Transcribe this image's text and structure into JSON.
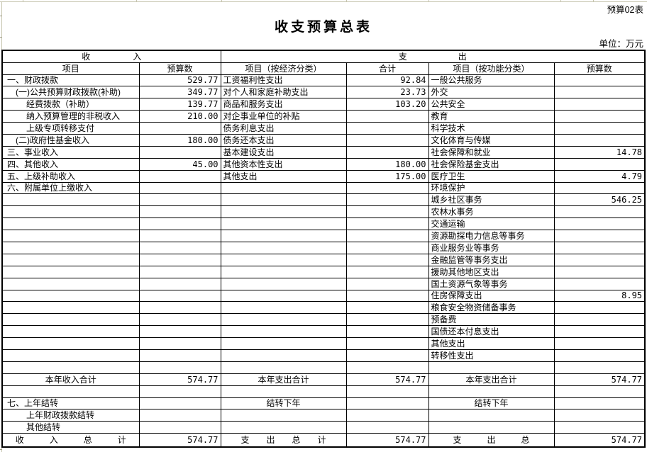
{
  "colors": {
    "background": "#ffffff",
    "table_border": "#000000",
    "sheet_gridline": "#c6c4ae",
    "text": "#000000"
  },
  "meta": {
    "table_code": "预算02表",
    "title": "收支预算总表",
    "unit_label": "单位：万元"
  },
  "header": {
    "income_group": "收　　　　　入",
    "expense_group": "支　　　　　　出",
    "cols": [
      "项目",
      "预算数",
      "项目（按经济分类）",
      "合计",
      "项目（按功能分类）",
      "预算数"
    ]
  },
  "rows": [
    {
      "c1": "一、财政拨款",
      "ind": 0,
      "v2": "529.77",
      "c3": "工资福利性支出",
      "v4": "92.84",
      "c5": "一般公共服务",
      "v6": ""
    },
    {
      "c1": "(一)公共预算财政拨款(补助)",
      "ind": 1,
      "v2": "349.77",
      "c3": "对个人和家庭补助支出",
      "v4": "23.73",
      "c5": "外交",
      "v6": ""
    },
    {
      "c1": "经费拨款（补助）",
      "ind": 2,
      "v2": "139.77",
      "c3": "商品和服务支出",
      "v4": "103.20",
      "c5": "公共安全",
      "v6": ""
    },
    {
      "c1": "纳入预算管理的非税收入",
      "ind": 2,
      "v2": "210.00",
      "c3": "对企事业单位的补贴",
      "v4": "",
      "c5": "教育",
      "v6": ""
    },
    {
      "c1": "上级专项转移支付",
      "ind": 2,
      "v2": "",
      "c3": "债务利息支出",
      "v4": "",
      "c5": "科学技术",
      "v6": ""
    },
    {
      "c1": "(二)政府性基金收入",
      "ind": 1,
      "v2": "180.00",
      "c3": "债务还本支出",
      "v4": "",
      "c5": "文化体育与传媒",
      "v6": ""
    },
    {
      "c1": "三、事业收入",
      "ind": 0,
      "v2": "",
      "c3": "基本建设支出",
      "v4": "",
      "c5": "社会保障和就业",
      "v6": "14.78"
    },
    {
      "c1": "四、其他收入",
      "ind": 0,
      "v2": "45.00",
      "c3": "其他资本性支出",
      "v4": "180.00",
      "c5": "社会保险基金支出",
      "v6": ""
    },
    {
      "c1": "五、上级补助收入",
      "ind": 0,
      "v2": "",
      "c3": "其他支出",
      "v4": "175.00",
      "c5": "医疗卫生",
      "v6": "4.79"
    },
    {
      "c1": "六、附属单位上缴收入",
      "ind": 0,
      "c3": "",
      "v4": "",
      "c5": "环境保护",
      "v6": ""
    },
    {
      "c5": "城乡社区事务",
      "v6": "546.25"
    },
    {
      "c5": "农林水事务"
    },
    {
      "c5": "交通运输"
    },
    {
      "c5": "资源勘探电力信息等事务"
    },
    {
      "c5": "商业服务业等事务"
    },
    {
      "c5": "金融监管等事务支出"
    },
    {
      "c5": "援助其他地区支出"
    },
    {
      "c5": "国土资源气象等事务"
    },
    {
      "c5": "住房保障支出",
      "v6": "8.95"
    },
    {
      "c5": "粮食安全物资储备事务"
    },
    {
      "c5": "预备费"
    },
    {
      "c5": "国债还本付息支出"
    },
    {
      "c5": "其他支出"
    },
    {
      "c5": "转移性支出"
    },
    {},
    {
      "t": "total",
      "c1": "本年收入合计",
      "v2": "574.77",
      "c3": "本年支出合计",
      "v4": "574.77",
      "c5": "本年支出合计",
      "v6": "574.77"
    },
    {},
    {
      "t": "carry",
      "c1": "七、上年结转",
      "ind": 0,
      "c3": "结转下年",
      "v4": "",
      "c5": "结转下年",
      "v6": ""
    },
    {
      "c1": "上年财政拨款结转",
      "ind": 2
    },
    {
      "c1": "其他结转",
      "ind": 2
    },
    {
      "t": "grand",
      "c1": "收　　　入　　　总　　　计",
      "v2": "574.77",
      "c3": "支　　出　　总　　计",
      "v4": "574.77",
      "c5": "支　　　出　　　总",
      "v6": "574.77"
    }
  ]
}
